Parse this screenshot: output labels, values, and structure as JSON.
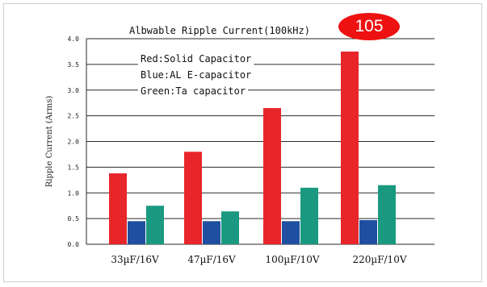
{
  "badge": {
    "label": "105",
    "color": "#ee1111"
  },
  "chart_data": {
    "type": "bar",
    "title": "Albwable Ripple Current(100kHz)",
    "xlabel": "",
    "ylabel": "Ripple Current (Arms)",
    "ylim": [
      0,
      4.0
    ],
    "yticks": [
      "0.0",
      "0.5",
      "1.0",
      "1.5",
      "2.0",
      "2.5",
      "3.0",
      "3.5",
      "4.0"
    ],
    "grid": true,
    "legend_position": "top-left",
    "categories": [
      "33µF/16V",
      "47µF/16V",
      "100µF/10V",
      "220µF/10V"
    ],
    "series": [
      {
        "name": "Red:Solid Capacitor",
        "color": "#e8262a",
        "values": [
          1.38,
          1.8,
          2.65,
          3.75
        ]
      },
      {
        "name": "Blue:AL E-capacitor",
        "color": "#1f4fa0",
        "values": [
          0.45,
          0.45,
          0.45,
          0.47
        ]
      },
      {
        "name": "Green:Ta capacitor",
        "color": "#1a9980",
        "values": [
          0.75,
          0.64,
          1.1,
          1.15
        ]
      }
    ]
  }
}
